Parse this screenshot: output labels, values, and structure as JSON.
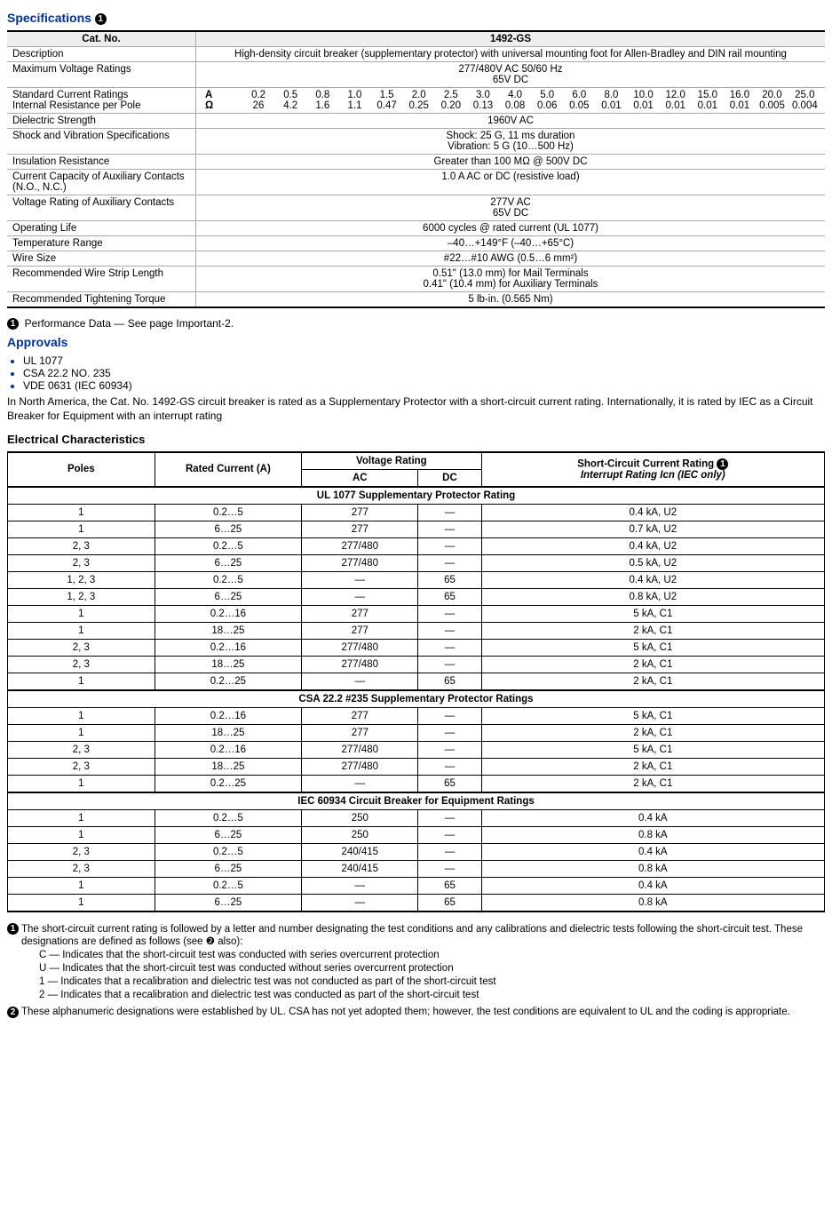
{
  "spec_title": "Specifications",
  "spec_header_left": "Cat. No.",
  "spec_header_right": "1492-GS",
  "spec_rows": {
    "desc_label": "Description",
    "desc_value": "High-density circuit breaker (supplementary protector) with universal mounting foot for Allen-Bradley and DIN rail mounting",
    "maxv_label": "Maximum Voltage Ratings",
    "maxv_value_1": "277/480V AC 50/60 Hz",
    "maxv_value_2": "65V DC",
    "scr_label_1": "Standard Current Ratings",
    "scr_label_2": "Internal Resistance per Pole",
    "dielectric_label": "Dielectric Strength",
    "dielectric_value": "1960V AC",
    "shock_label": "Shock and Vibration Specifications",
    "shock_value_1": "Shock: 25 G, 11 ms duration",
    "shock_value_2": "Vibration: 5 G (10…500 Hz)",
    "insul_label": "Insulation Resistance",
    "insul_value": "Greater than 100 MΩ @ 500V DC",
    "curr_cap_label": "Current Capacity of Auxiliary Contacts (N.O., N.C.)",
    "curr_cap_value": "1.0 A AC or DC (resistive load)",
    "volt_aux_label": "Voltage Rating of Auxiliary Contacts",
    "volt_aux_value_1": "277V AC",
    "volt_aux_value_2": "65V DC",
    "op_life_label": "Operating Life",
    "op_life_value": "6000 cycles @ rated current (UL 1077)",
    "temp_label": "Temperature Range",
    "temp_value": "–40…+149°F (–40…+65°C)",
    "wire_label": "Wire Size",
    "wire_value": "#22…#10 AWG (0.5…6 mm²)",
    "strip_label": "Recommended Wire Strip Length",
    "strip_value_1": "0.51\" (13.0 mm) for Mail Terminals",
    "strip_value_2": "0.41\" (10.4 mm) for Auxiliary Terminals",
    "torque_label": "Recommended Tightening Torque",
    "torque_value": "5 lb-in. (0.565 Nm)"
  },
  "ratings_table": {
    "unit_a": "A",
    "unit_ohm": "Ω",
    "a": [
      "0.2",
      "0.5",
      "0.8",
      "1.0",
      "1.5",
      "2.0",
      "2.5",
      "3.0",
      "4.0",
      "5.0",
      "6.0",
      "8.0",
      "10.0",
      "12.0",
      "15.0",
      "16.0",
      "20.0",
      "25.0"
    ],
    "ohm": [
      "26",
      "4.2",
      "1.6",
      "1.1",
      "0.47",
      "0.25",
      "0.20",
      "0.13",
      "0.08",
      "0.06",
      "0.05",
      "0.01",
      "0.01",
      "0.01",
      "0.01",
      "0.01",
      "0.005",
      "0.004"
    ]
  },
  "footnote_1": "Performance Data — See page Important-2.",
  "approvals_title": "Approvals",
  "approvals": {
    "a1": "UL 1077",
    "a2": "CSA 22.2 NO. 235",
    "a3": "VDE 0631 (IEC 60934)"
  },
  "body_para": "In North America, the Cat. No. 1492-GS circuit breaker is rated as a Supplementary Protector with a short-circuit current rating. Internationally, it is rated by IEC as a Circuit Breaker for Equipment with an interrupt rating",
  "ec_title": "Electrical Characteristics",
  "ec_headers": {
    "poles": "Poles",
    "rated": "Rated Current (A)",
    "vr": "Voltage Rating",
    "ac": "AC",
    "dc": "DC",
    "scr_1": "Short-Circuit Current Rating",
    "scr_2": "Interrupt Rating Icn (IEC only)"
  },
  "ec_sections": {
    "s1": "UL 1077 Supplementary Protector Rating",
    "s2": "CSA 22.2 #235 Supplementary Protector Ratings",
    "s3": "IEC 60934 Circuit Breaker for Equipment Ratings"
  },
  "ec_s1": [
    {
      "p": "1",
      "r": "0.2…5",
      "ac": "277",
      "dc": "—",
      "s": "0.4 kA, U2"
    },
    {
      "p": "1",
      "r": "6…25",
      "ac": "277",
      "dc": "—",
      "s": "0.7 kA, U2"
    },
    {
      "p": "2, 3",
      "r": "0.2…5",
      "ac": "277/480",
      "dc": "—",
      "s": "0.4 kA, U2"
    },
    {
      "p": "2, 3",
      "r": "6…25",
      "ac": "277/480",
      "dc": "—",
      "s": "0.5 kA, U2"
    },
    {
      "p": "1, 2, 3",
      "r": "0.2…5",
      "ac": "—",
      "dc": "65",
      "s": "0.4 kA, U2"
    },
    {
      "p": "1, 2, 3",
      "r": "6…25",
      "ac": "—",
      "dc": "65",
      "s": "0.8 kA, U2"
    },
    {
      "p": "1",
      "r": "0.2…16",
      "ac": "277",
      "dc": "—",
      "s": "5 kA, C1"
    },
    {
      "p": "1",
      "r": "18…25",
      "ac": "277",
      "dc": "—",
      "s": "2 kA, C1"
    },
    {
      "p": "2, 3",
      "r": "0.2…16",
      "ac": "277/480",
      "dc": "—",
      "s": "5 kA, C1"
    },
    {
      "p": "2, 3",
      "r": "18…25",
      "ac": "277/480",
      "dc": "—",
      "s": "2 kA, C1"
    },
    {
      "p": "1",
      "r": "0.2…25",
      "ac": "—",
      "dc": "65",
      "s": "2 kA, C1"
    }
  ],
  "ec_s2": [
    {
      "p": "1",
      "r": "0.2…16",
      "ac": "277",
      "dc": "—",
      "s": "5 kA, C1"
    },
    {
      "p": "1",
      "r": "18…25",
      "ac": "277",
      "dc": "—",
      "s": "2 kA, C1"
    },
    {
      "p": "2, 3",
      "r": "0.2…16",
      "ac": "277/480",
      "dc": "—",
      "s": "5 kA, C1"
    },
    {
      "p": "2, 3",
      "r": "18…25",
      "ac": "277/480",
      "dc": "—",
      "s": "2 kA, C1"
    },
    {
      "p": "1",
      "r": "0.2…25",
      "ac": "—",
      "dc": "65",
      "s": "2 kA, C1"
    }
  ],
  "ec_s3": [
    {
      "p": "1",
      "r": "0.2…5",
      "ac": "250",
      "dc": "—",
      "s": "0.4 kA"
    },
    {
      "p": "1",
      "r": "6…25",
      "ac": "250",
      "dc": "—",
      "s": "0.8 kA"
    },
    {
      "p": "2, 3",
      "r": "0.2…5",
      "ac": "240/415",
      "dc": "—",
      "s": "0.4 kA"
    },
    {
      "p": "2, 3",
      "r": "6…25",
      "ac": "240/415",
      "dc": "—",
      "s": "0.8 kA"
    },
    {
      "p": "1",
      "r": "0.2…5",
      "ac": "—",
      "dc": "65",
      "s": "0.4 kA"
    },
    {
      "p": "1",
      "r": "6…25",
      "ac": "—",
      "dc": "65",
      "s": "0.8 kA"
    }
  ],
  "notes": {
    "n1_main": "The short-circuit current rating is followed by a letter and number designating the test conditions and any calibrations and dielectric tests following the short-circuit test. These designations are defined as follows (see ❷ also):",
    "n1_c": "C — Indicates that the short-circuit test was conducted with series overcurrent protection",
    "n1_u": "U — Indicates that the short-circuit test was conducted without series overcurrent protection",
    "n1_1": "1 — Indicates that a recalibration and dielectric test was not conducted as part of the short-circuit test",
    "n1_2": "2 — Indicates that a recalibration and dielectric test was conducted as part of the short-circuit test",
    "n2_main": "These alphanumeric designations were established by UL. CSA has not yet adopted them; however, the test conditions are equivalent to UL and the coding is appropriate."
  }
}
